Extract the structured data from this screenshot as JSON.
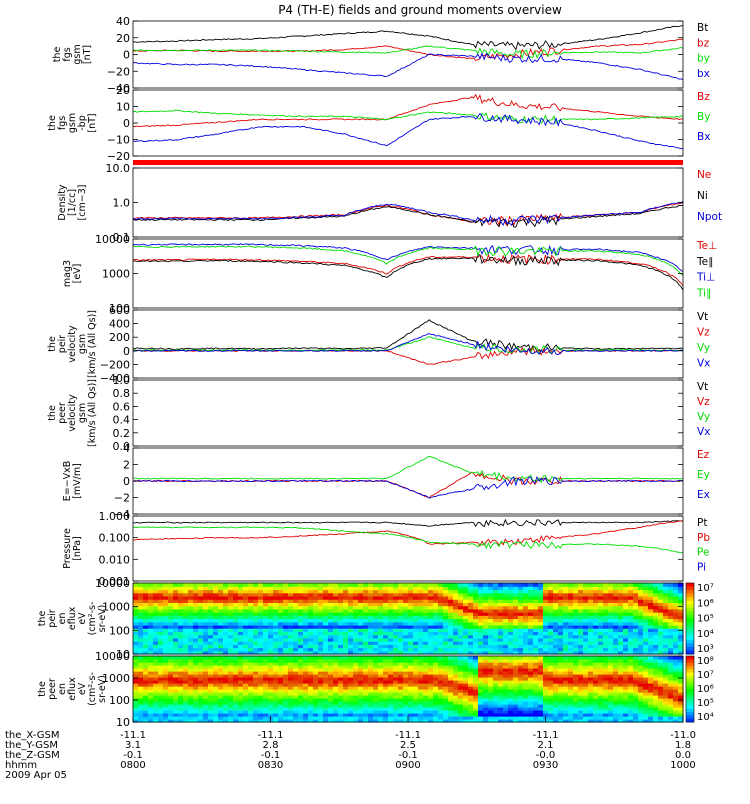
{
  "title": "P4 (TH-E) fields and ground moments overview",
  "colors": {
    "black": "#000000",
    "red": "#e00000",
    "green": "#00dd00",
    "blue": "#0000e0"
  },
  "chart_data": [
    {
      "type": "line",
      "id": "fgs_gsm",
      "ylabel": [
        "the",
        "fgs",
        "gsm",
        "[nT]"
      ],
      "ylim": [
        -40,
        40
      ],
      "yticks": [
        "40",
        "20",
        "0",
        "−20",
        "−40"
      ],
      "series": [
        {
          "name": "Bt",
          "color": "#000000",
          "values": [
            15,
            16,
            18,
            19,
            22,
            25,
            28,
            22,
            12,
            10,
            12,
            18,
            26,
            35
          ]
        },
        {
          "name": "bz",
          "color": "#e00000",
          "values": [
            4,
            5,
            4,
            4,
            4,
            6,
            10,
            0,
            -5,
            0,
            5,
            10,
            12,
            18
          ]
        },
        {
          "name": "by",
          "color": "#00dd00",
          "values": [
            5,
            5,
            5,
            5,
            4,
            3,
            2,
            10,
            5,
            0,
            2,
            3,
            2,
            8
          ]
        },
        {
          "name": "bx",
          "color": "#0000e0",
          "values": [
            -10,
            -12,
            -12,
            -14,
            -18,
            -22,
            -26,
            0,
            -2,
            -5,
            -5,
            -10,
            -18,
            -30
          ]
        }
      ]
    },
    {
      "type": "line",
      "id": "fgs_gsm_bp",
      "ylabel": [
        "the",
        "fgs",
        "gsm",
        "-bp",
        "[nT]"
      ],
      "ylim": [
        -25,
        20
      ],
      "yticks": [
        "20",
        "10",
        "0",
        "−10",
        "−20"
      ],
      "series": [
        {
          "name": "Bz",
          "color": "#e00000",
          "values": [
            -5,
            -4,
            -2,
            0,
            0,
            0,
            0,
            10,
            15,
            10,
            8,
            5,
            2,
            0
          ]
        },
        {
          "name": "By",
          "color": "#00dd00",
          "values": [
            5,
            6,
            4,
            3,
            2,
            2,
            0,
            5,
            3,
            0,
            0,
            0,
            1,
            2
          ]
        },
        {
          "name": "Bx",
          "color": "#0000e0",
          "values": [
            -15,
            -14,
            -10,
            -5,
            -5,
            -10,
            -18,
            0,
            2,
            0,
            -2,
            -8,
            -15,
            -20
          ]
        }
      ]
    },
    {
      "type": "line",
      "id": "density",
      "scale": "log",
      "ylabel": [
        "Density",
        "[1/cc]",
        "[cm−3]"
      ],
      "ylim": [
        0.1,
        15
      ],
      "yticks": [
        "10.0",
        "1.0",
        "0.1"
      ],
      "series": [
        {
          "name": "Ne",
          "color": "#e00000",
          "values": [
            0.4,
            0.4,
            0.4,
            0.4,
            0.45,
            0.5,
            1.0,
            0.5,
            0.3,
            0.35,
            0.4,
            0.5,
            0.6,
            1.2
          ]
        },
        {
          "name": "Ni",
          "color": "#000000",
          "values": [
            0.35,
            0.35,
            0.35,
            0.35,
            0.4,
            0.45,
            0.9,
            0.5,
            0.3,
            0.3,
            0.35,
            0.45,
            0.55,
            1.0
          ]
        },
        {
          "name": "Npot",
          "color": "#0000e0",
          "values": [
            0.38,
            0.38,
            0.38,
            0.38,
            0.42,
            0.48,
            1.1,
            0.6,
            0.35,
            0.35,
            0.4,
            0.5,
            0.6,
            1.3
          ]
        }
      ]
    },
    {
      "type": "line",
      "id": "temperature",
      "scale": "log",
      "ylabel": [
        "mag3",
        "[eV]"
      ],
      "ylim": [
        50,
        10000
      ],
      "yticks": [
        "10000",
        "1000",
        "100"
      ],
      "series": [
        {
          "name": "Te⊥",
          "color": "#e00000",
          "values": [
            2000,
            2000,
            2100,
            2000,
            1800,
            1500,
            700,
            2500,
            2500,
            2200,
            2200,
            2100,
            1500,
            300
          ]
        },
        {
          "name": "Te∥",
          "color": "#000000",
          "values": [
            1800,
            1800,
            1900,
            1800,
            1600,
            1300,
            500,
            2200,
            2300,
            2000,
            2000,
            1900,
            1300,
            200
          ]
        },
        {
          "name": "Ti⊥",
          "color": "#0000e0",
          "values": [
            6500,
            6500,
            6600,
            6500,
            6000,
            5000,
            2000,
            5500,
            5000,
            4500,
            4500,
            4500,
            3500,
            800
          ]
        },
        {
          "name": "Ti∥",
          "color": "#00dd00",
          "values": [
            5500,
            5500,
            5600,
            5500,
            5000,
            4000,
            1500,
            5000,
            4500,
            4000,
            4000,
            4000,
            3000,
            600
          ]
        }
      ]
    },
    {
      "type": "line",
      "id": "peir_velocity",
      "ylabel": [
        "the",
        "peir",
        "velocity",
        "gsm",
        "[km/s (All Qs)]"
      ],
      "ylim": [
        -400,
        600
      ],
      "yticks": [
        "600",
        "400",
        "200",
        "0",
        "−200",
        "−400"
      ],
      "series": [
        {
          "name": "Vt",
          "color": "#000000",
          "values": [
            40,
            30,
            35,
            30,
            40,
            30,
            45,
            450,
            150,
            60,
            40,
            30,
            30,
            40
          ]
        },
        {
          "name": "Vz",
          "color": "#e00000",
          "values": [
            0,
            0,
            0,
            0,
            0,
            0,
            0,
            -200,
            -100,
            0,
            0,
            0,
            0,
            0
          ]
        },
        {
          "name": "Vy",
          "color": "#00dd00",
          "values": [
            10,
            10,
            10,
            10,
            10,
            10,
            10,
            200,
            50,
            20,
            10,
            10,
            10,
            10
          ]
        },
        {
          "name": "Vx",
          "color": "#0000e0",
          "values": [
            0,
            0,
            0,
            0,
            0,
            0,
            0,
            250,
            100,
            0,
            0,
            0,
            0,
            0
          ]
        }
      ]
    },
    {
      "type": "line",
      "id": "peer_velocity",
      "ylabel": [
        "the",
        "peer",
        "velocity",
        "gsm",
        "[km/s (All Qs)]"
      ],
      "ylim": [
        0,
        1
      ],
      "yticks": [
        "1.0",
        "0.8",
        "0.6",
        "0.4",
        "0.2",
        "0.0"
      ],
      "series": [
        {
          "name": "Vt",
          "color": "#000000",
          "values": []
        },
        {
          "name": "Vz",
          "color": "#e00000",
          "values": []
        },
        {
          "name": "Vy",
          "color": "#00dd00",
          "values": []
        },
        {
          "name": "Vx",
          "color": "#0000e0",
          "values": []
        }
      ]
    },
    {
      "type": "line",
      "id": "efield",
      "ylabel": [
        "E=−VxB",
        "[mV/m]"
      ],
      "ylim": [
        -4,
        4
      ],
      "yticks": [
        "4",
        "2",
        "0",
        "−2",
        "−4"
      ],
      "series": [
        {
          "name": "Ez",
          "color": "#e00000",
          "values": [
            0,
            0,
            0,
            0,
            0,
            0,
            0,
            -2,
            1,
            0,
            0,
            0,
            0,
            0
          ]
        },
        {
          "name": "Ey",
          "color": "#00dd00",
          "values": [
            0.3,
            0.3,
            0.3,
            0.3,
            0.3,
            0.3,
            0.3,
            3,
            1,
            0.3,
            0.3,
            0.3,
            0.3,
            0.3
          ]
        },
        {
          "name": "Ex",
          "color": "#0000e0",
          "values": [
            0,
            0,
            0,
            0,
            0,
            0,
            0,
            -2,
            -1,
            0,
            0,
            0,
            0,
            0
          ]
        }
      ]
    },
    {
      "type": "line",
      "id": "pressure",
      "scale": "log",
      "ylabel": [
        "Pressure",
        "[nPa]"
      ],
      "ylim": [
        0.001,
        1.0
      ],
      "yticks": [
        "1.000",
        "0.100",
        "0.010",
        "0.001"
      ],
      "series": [
        {
          "name": "Pt",
          "color": "#000000",
          "values": [
            0.5,
            0.5,
            0.5,
            0.5,
            0.5,
            0.5,
            0.5,
            0.35,
            0.5,
            0.5,
            0.5,
            0.5,
            0.5,
            0.6
          ]
        },
        {
          "name": "Pb",
          "color": "#e00000",
          "values": [
            0.08,
            0.09,
            0.1,
            0.1,
            0.12,
            0.15,
            0.2,
            0.05,
            0.06,
            0.07,
            0.1,
            0.15,
            0.3,
            0.6
          ]
        },
        {
          "name": "Pe",
          "color": "#00dd00",
          "values": [
            0.3,
            0.3,
            0.3,
            0.3,
            0.28,
            0.2,
            0.15,
            0.06,
            0.05,
            0.05,
            0.05,
            0.05,
            0.04,
            0.02
          ]
        },
        {
          "name": "Pi",
          "color": "#0000e0",
          "values": []
        }
      ]
    },
    {
      "type": "heatmap",
      "id": "peir_spec",
      "scale": "log",
      "ylabel": [
        "the",
        "peir",
        "en",
        "eflux",
        "eV",
        "(cm²-s-",
        "sr-eV)"
      ],
      "ylim": [
        7,
        20000
      ],
      "yticks": [
        "10000",
        "1000",
        "100",
        "10"
      ],
      "colorbar": [
        "10⁷",
        "10⁶",
        "10⁵",
        "10⁴",
        "10³"
      ]
    },
    {
      "type": "heatmap",
      "id": "peer_spec",
      "scale": "log",
      "ylabel": [
        "the",
        "peer",
        "en",
        "eflux",
        "eV",
        "(cm²-s-",
        "sr-eV)"
      ],
      "ylim": [
        7,
        20000
      ],
      "yticks": [
        "10000",
        "1000",
        "100",
        "10"
      ],
      "colorbar": [
        "10⁸",
        "10⁷",
        "10⁶",
        "10⁵",
        "10⁴"
      ]
    }
  ],
  "xaxis": {
    "rows": [
      {
        "label": "the_X-GSM",
        "values": [
          "-11.1",
          "-11.1",
          "-11.1",
          "-11.1",
          "-11.0"
        ]
      },
      {
        "label": "the_Y-GSM",
        "values": [
          "3.1",
          "2.8",
          "2.5",
          "2.1",
          "1.8"
        ]
      },
      {
        "label": "the_Z-GSM",
        "values": [
          "-0.1",
          "-0.1",
          "-0.1",
          "-0.0",
          "0.0"
        ]
      },
      {
        "label": "hhmm",
        "values": [
          "0800",
          "0830",
          "0900",
          "0930",
          "1000"
        ]
      }
    ],
    "date": "2009 Apr 05"
  }
}
